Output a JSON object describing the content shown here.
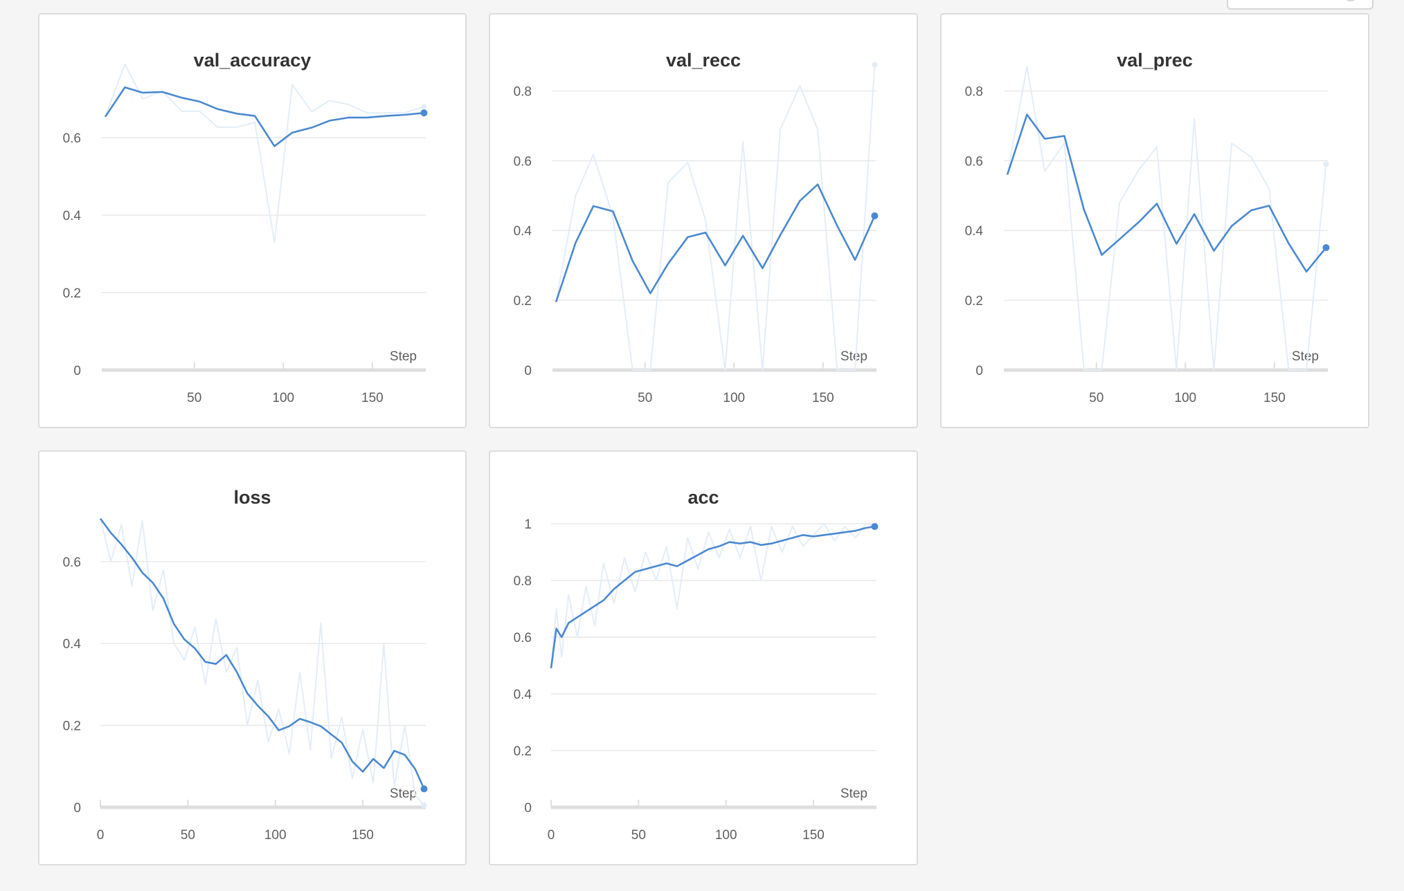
{
  "colors": {
    "series": "#4a88d1",
    "series_raw": "#e3edf8",
    "grid": "#e9e9e9",
    "axis": "#dedede",
    "panel_border": "#dcdcdc",
    "background": "#f5f5f5"
  },
  "chart_data": [
    {
      "type": "line",
      "title": "val_accuracy",
      "xlabel": "Step",
      "ylabel": "",
      "xlim": [
        -2,
        180
      ],
      "ylim": [
        0,
        0.8
      ],
      "xticks": [
        "50",
        "100",
        "150"
      ],
      "yticks": [
        "0",
        "0.2",
        "0.4",
        "0.6"
      ],
      "grid": true,
      "series": [
        {
          "role": "smoothed",
          "x": [
            0,
            11,
            21,
            32,
            43,
            53,
            63,
            74,
            84,
            95,
            105,
            116,
            126,
            137,
            147,
            158,
            168,
            179
          ],
          "values": [
            0.654,
            0.73,
            0.716,
            0.718,
            0.703,
            0.693,
            0.674,
            0.662,
            0.656,
            0.578,
            0.613,
            0.626,
            0.644,
            0.652,
            0.652,
            0.656,
            0.659,
            0.664
          ]
        },
        {
          "role": "raw",
          "x": [
            0,
            11,
            21,
            32,
            43,
            53,
            63,
            74,
            84,
            95,
            105,
            116,
            126,
            137,
            147,
            158,
            168,
            179
          ],
          "values": [
            0.654,
            0.79,
            0.7,
            0.72,
            0.668,
            0.668,
            0.627,
            0.627,
            0.64,
            0.33,
            0.737,
            0.667,
            0.696,
            0.685,
            0.664,
            0.664,
            0.664,
            0.68
          ]
        }
      ]
    },
    {
      "type": "line",
      "title": "val_recc",
      "xlabel": "Step",
      "ylabel": "",
      "xlim": [
        -2,
        180
      ],
      "ylim": [
        0,
        0.9
      ],
      "xticks": [
        "50",
        "100",
        "150"
      ],
      "yticks": [
        "0",
        "0.2",
        "0.4",
        "0.6",
        "0.8"
      ],
      "grid": true,
      "series": [
        {
          "role": "smoothed",
          "x": [
            0,
            11,
            21,
            32,
            43,
            53,
            63,
            74,
            84,
            95,
            105,
            116,
            126,
            137,
            147,
            158,
            168,
            179
          ],
          "values": [
            0.195,
            0.365,
            0.47,
            0.455,
            0.313,
            0.22,
            0.305,
            0.381,
            0.394,
            0.3,
            0.385,
            0.292,
            0.387,
            0.485,
            0.532,
            0.413,
            0.316,
            0.442
          ]
        },
        {
          "role": "raw",
          "x": [
            0,
            11,
            21,
            32,
            43,
            53,
            63,
            74,
            84,
            95,
            105,
            116,
            126,
            137,
            147,
            158,
            168,
            179
          ],
          "values": [
            0.195,
            0.5,
            0.618,
            0.44,
            0.0,
            0.0,
            0.537,
            0.595,
            0.43,
            0.0,
            0.655,
            0.0,
            0.69,
            0.815,
            0.69,
            0.0,
            0.0,
            0.875
          ]
        }
      ]
    },
    {
      "type": "line",
      "title": "val_prec",
      "xlabel": "Step",
      "ylabel": "",
      "xlim": [
        -2,
        180
      ],
      "ylim": [
        0,
        0.9
      ],
      "xticks": [
        "50",
        "100",
        "150"
      ],
      "yticks": [
        "0",
        "0.2",
        "0.4",
        "0.6",
        "0.8"
      ],
      "grid": true,
      "series": [
        {
          "role": "smoothed",
          "x": [
            0,
            11,
            21,
            32,
            43,
            53,
            63,
            74,
            84,
            95,
            105,
            116,
            126,
            137,
            147,
            158,
            168,
            179
          ],
          "values": [
            0.56,
            0.732,
            0.663,
            0.671,
            0.46,
            0.33,
            0.375,
            0.425,
            0.477,
            0.362,
            0.447,
            0.342,
            0.413,
            0.458,
            0.471,
            0.363,
            0.282,
            0.351
          ]
        },
        {
          "role": "raw",
          "x": [
            0,
            11,
            21,
            32,
            43,
            53,
            63,
            74,
            84,
            95,
            105,
            116,
            126,
            137,
            147,
            158,
            168,
            179
          ],
          "values": [
            0.56,
            0.87,
            0.57,
            0.65,
            0.0,
            0.0,
            0.48,
            0.575,
            0.64,
            0.0,
            0.72,
            0.0,
            0.65,
            0.61,
            0.52,
            0.0,
            0.0,
            0.59
          ]
        }
      ]
    },
    {
      "type": "line",
      "title": "loss",
      "xlabel": "Step",
      "ylabel": "",
      "xlim": [
        0,
        186
      ],
      "ylim": [
        0,
        0.75
      ],
      "xticks": [
        "0",
        "50",
        "100",
        "150"
      ],
      "yticks": [
        "0",
        "0.2",
        "0.4",
        "0.6"
      ],
      "grid": true,
      "series": [
        {
          "role": "smoothed",
          "x": [
            0,
            6,
            12,
            18,
            24,
            30,
            36,
            42,
            48,
            54,
            60,
            66,
            72,
            78,
            84,
            90,
            96,
            102,
            108,
            114,
            120,
            126,
            132,
            138,
            144,
            150,
            156,
            162,
            168,
            174,
            180,
            185
          ],
          "values": [
            0.705,
            0.67,
            0.642,
            0.61,
            0.573,
            0.548,
            0.51,
            0.448,
            0.41,
            0.388,
            0.355,
            0.35,
            0.372,
            0.33,
            0.278,
            0.248,
            0.222,
            0.188,
            0.198,
            0.216,
            0.208,
            0.198,
            0.178,
            0.158,
            0.112,
            0.087,
            0.118,
            0.096,
            0.138,
            0.128,
            0.093,
            0.045
          ]
        },
        {
          "role": "raw",
          "x": [
            0,
            6,
            12,
            18,
            24,
            30,
            36,
            42,
            48,
            54,
            60,
            66,
            72,
            78,
            84,
            90,
            96,
            102,
            108,
            114,
            120,
            126,
            132,
            138,
            144,
            150,
            156,
            162,
            168,
            174,
            180,
            185
          ],
          "values": [
            0.705,
            0.6,
            0.69,
            0.54,
            0.7,
            0.48,
            0.58,
            0.4,
            0.36,
            0.44,
            0.3,
            0.46,
            0.33,
            0.39,
            0.2,
            0.31,
            0.16,
            0.24,
            0.13,
            0.33,
            0.14,
            0.45,
            0.12,
            0.22,
            0.07,
            0.19,
            0.06,
            0.4,
            0.05,
            0.2,
            0.03,
            0.005
          ]
        }
      ]
    },
    {
      "type": "line",
      "title": "acc",
      "xlabel": "Step",
      "ylabel": "",
      "xlim": [
        0,
        186
      ],
      "ylim": [
        0,
        1.0
      ],
      "xticks": [
        "0",
        "50",
        "100",
        "150"
      ],
      "yticks": [
        "0",
        "0.2",
        "0.4",
        "0.6",
        "0.8",
        "1"
      ],
      "grid": true,
      "series": [
        {
          "role": "smoothed",
          "x": [
            0,
            3,
            6,
            10,
            15,
            20,
            25,
            30,
            36,
            42,
            48,
            54,
            60,
            66,
            72,
            78,
            84,
            90,
            96,
            102,
            108,
            114,
            120,
            126,
            132,
            138,
            144,
            150,
            156,
            162,
            168,
            174,
            180,
            185
          ],
          "values": [
            0.49,
            0.63,
            0.6,
            0.65,
            0.67,
            0.69,
            0.71,
            0.73,
            0.77,
            0.8,
            0.83,
            0.84,
            0.85,
            0.86,
            0.85,
            0.87,
            0.89,
            0.91,
            0.92,
            0.935,
            0.93,
            0.935,
            0.925,
            0.93,
            0.94,
            0.95,
            0.96,
            0.955,
            0.96,
            0.965,
            0.97,
            0.975,
            0.985,
            0.99
          ]
        },
        {
          "role": "raw",
          "x": [
            0,
            3,
            6,
            10,
            15,
            20,
            25,
            30,
            36,
            42,
            48,
            54,
            60,
            66,
            72,
            78,
            84,
            90,
            96,
            102,
            108,
            114,
            120,
            126,
            132,
            138,
            144,
            150,
            156,
            162,
            168,
            174,
            180,
            185
          ],
          "values": [
            0.49,
            0.7,
            0.53,
            0.75,
            0.6,
            0.78,
            0.64,
            0.86,
            0.72,
            0.88,
            0.76,
            0.9,
            0.8,
            0.92,
            0.7,
            0.95,
            0.84,
            0.97,
            0.88,
            0.98,
            0.88,
            0.99,
            0.8,
            0.99,
            0.9,
            0.99,
            0.92,
            0.96,
            1.0,
            0.94,
            0.99,
            0.95,
            1.0,
            0.99
          ]
        }
      ]
    }
  ]
}
